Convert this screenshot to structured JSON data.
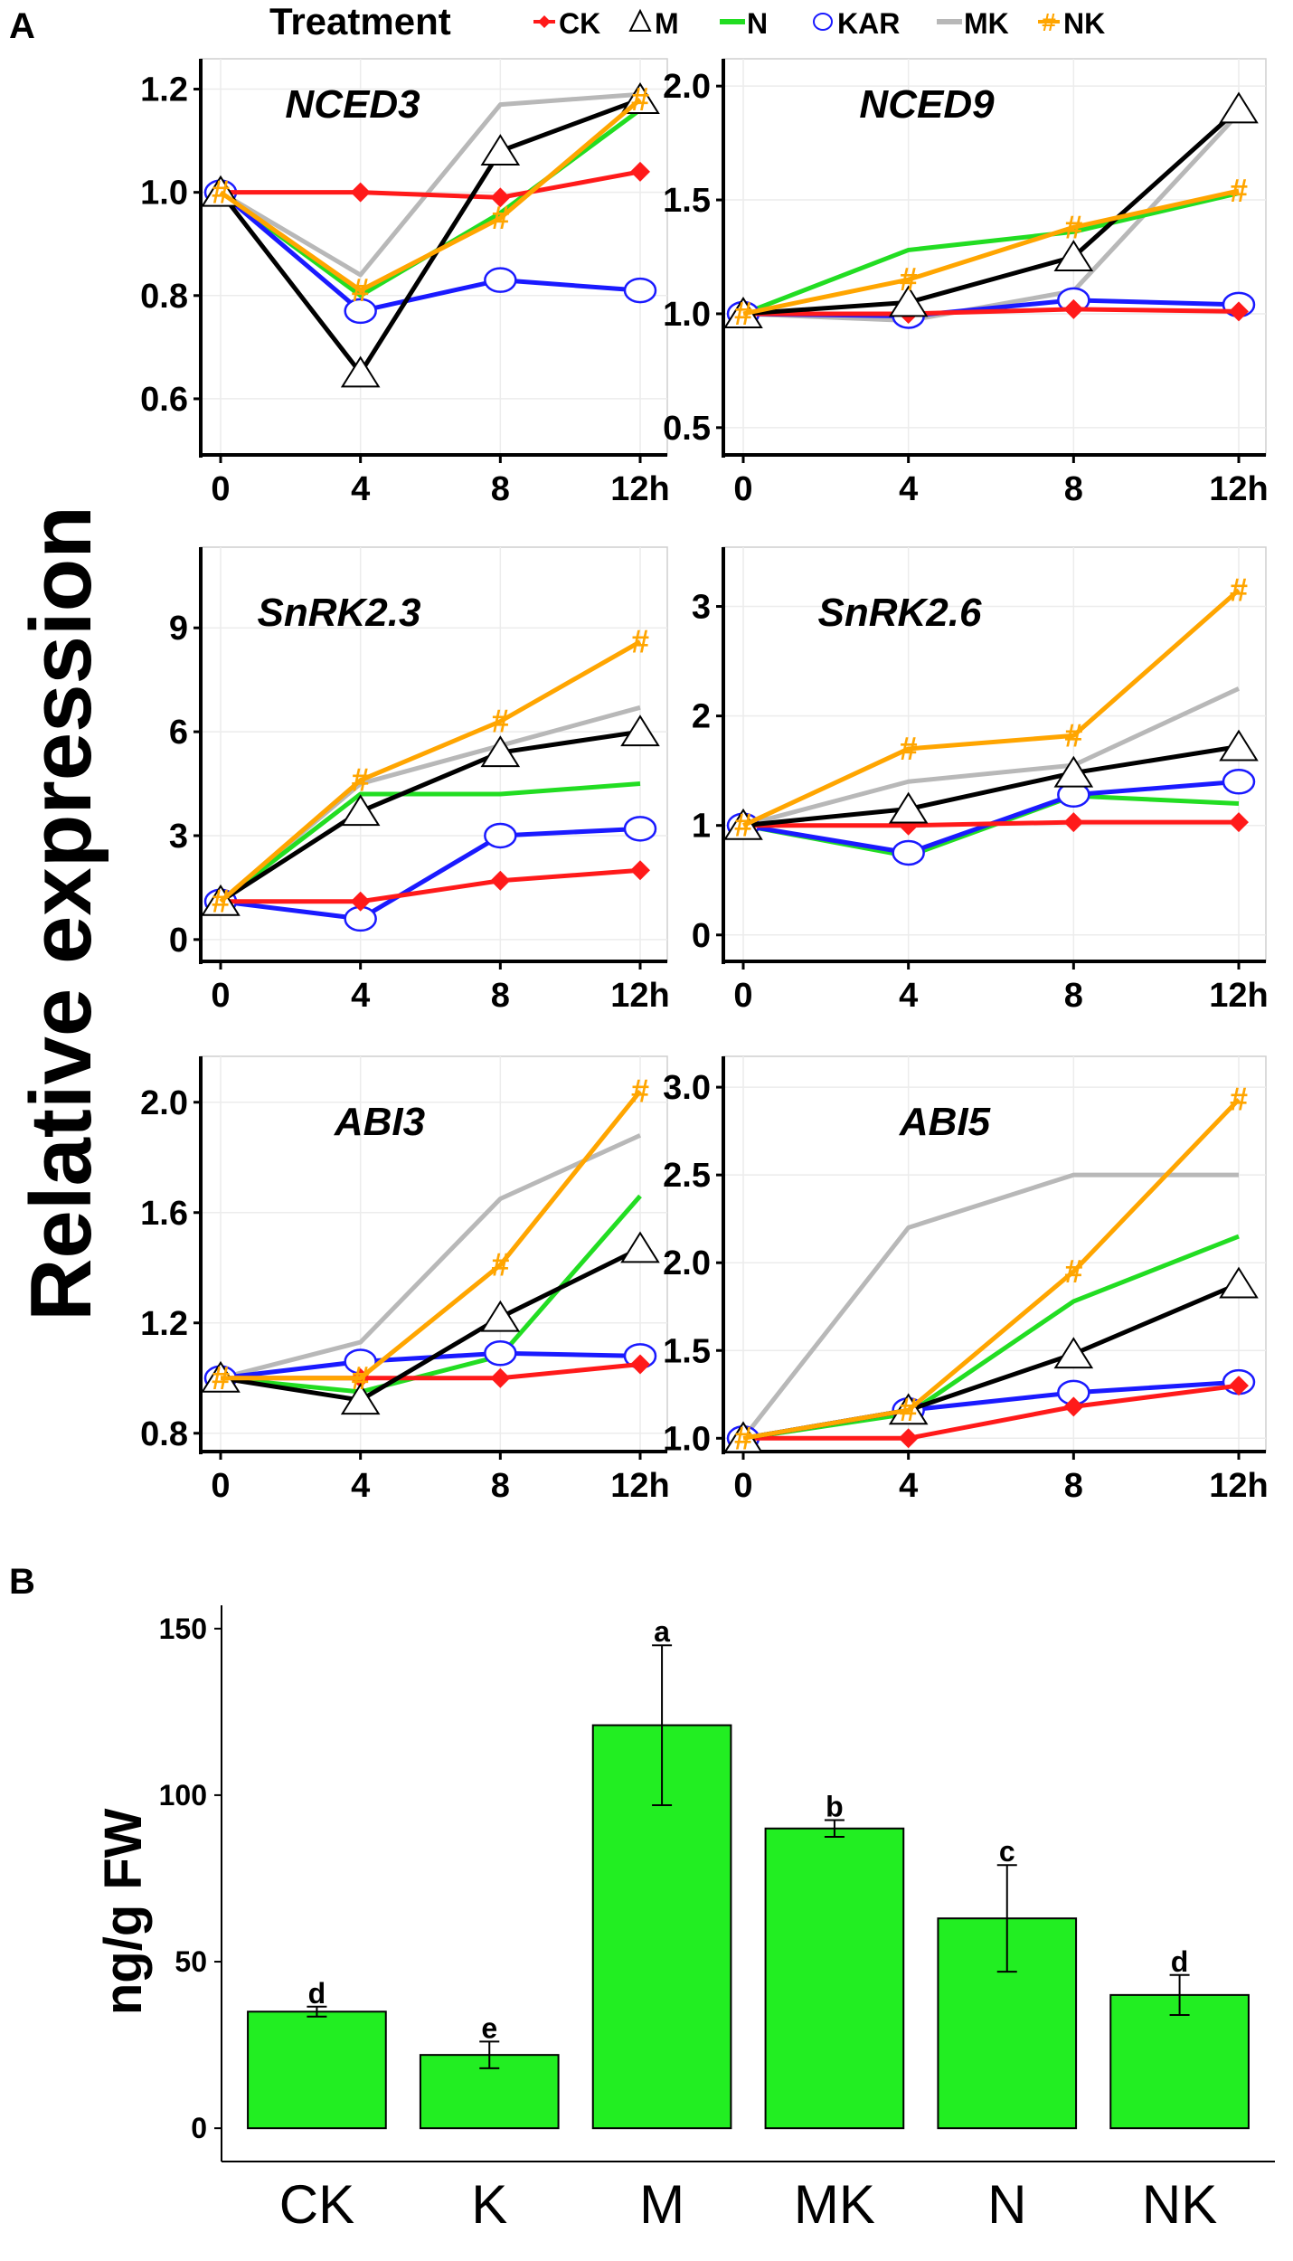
{
  "panel_labels": {
    "a": "A",
    "b": "B"
  },
  "legend": {
    "title": "Treatment",
    "items": [
      {
        "key": "CK",
        "label": "CK",
        "color": "#ff1a1a",
        "marker": "diamond"
      },
      {
        "key": "M",
        "label": "M",
        "color": "#000000",
        "marker": "triangle"
      },
      {
        "key": "N",
        "label": "N",
        "color": "#22dd22",
        "marker": "none"
      },
      {
        "key": "KAR",
        "label": "KAR",
        "color": "#1a1aff",
        "marker": "circle"
      },
      {
        "key": "MK",
        "label": "MK",
        "color": "#b8b8b8",
        "marker": "none"
      },
      {
        "key": "NK",
        "label": "NK",
        "color": "#ffa500",
        "marker": "hash"
      }
    ]
  },
  "shared_ylabel": "Relative expression",
  "chart_data": [
    {
      "type": "line",
      "title": "NCED3",
      "x": [
        0,
        4,
        8,
        12
      ],
      "x_tick_labels": [
        "0",
        "4",
        "8",
        "12h"
      ],
      "y_ticks": [
        "0.6",
        "0.8",
        "1.0",
        "1.2"
      ],
      "ylim": [
        0.5,
        1.25
      ],
      "series": [
        {
          "name": "CK",
          "values": [
            1.0,
            1.0,
            0.99,
            1.04
          ]
        },
        {
          "name": "M",
          "values": [
            1.0,
            0.65,
            1.08,
            1.18
          ]
        },
        {
          "name": "N",
          "values": [
            1.0,
            0.8,
            0.96,
            1.16
          ]
        },
        {
          "name": "KAR",
          "values": [
            1.0,
            0.77,
            0.83,
            0.81
          ]
        },
        {
          "name": "MK",
          "values": [
            1.0,
            0.84,
            1.17,
            1.19
          ]
        },
        {
          "name": "NK",
          "values": [
            1.0,
            0.81,
            0.95,
            1.18
          ]
        }
      ]
    },
    {
      "type": "line",
      "title": "NCED9",
      "x": [
        0,
        4,
        8,
        12
      ],
      "x_tick_labels": [
        "0",
        "4",
        "8",
        "12h"
      ],
      "y_ticks": [
        "0.5",
        "1.0",
        "1.5",
        "2.0"
      ],
      "ylim": [
        0.4,
        2.1
      ],
      "series": [
        {
          "name": "CK",
          "values": [
            1.0,
            1.0,
            1.02,
            1.01
          ]
        },
        {
          "name": "M",
          "values": [
            1.0,
            1.05,
            1.25,
            1.9
          ]
        },
        {
          "name": "N",
          "values": [
            1.0,
            1.28,
            1.36,
            1.53
          ]
        },
        {
          "name": "KAR",
          "values": [
            1.0,
            0.99,
            1.06,
            1.04
          ]
        },
        {
          "name": "MK",
          "values": [
            1.0,
            0.97,
            1.1,
            1.88
          ]
        },
        {
          "name": "NK",
          "values": [
            1.0,
            1.15,
            1.38,
            1.54
          ]
        }
      ]
    },
    {
      "type": "line",
      "title": "SnRK2.3",
      "x": [
        0,
        4,
        8,
        12
      ],
      "x_tick_labels": [
        "0",
        "4",
        "8",
        "12h"
      ],
      "y_ticks": [
        "0",
        "3",
        "6",
        "9"
      ],
      "ylim": [
        -0.5,
        11.2
      ],
      "series": [
        {
          "name": "CK",
          "values": [
            1.1,
            1.1,
            1.7,
            2.0
          ]
        },
        {
          "name": "M",
          "values": [
            1.1,
            3.7,
            5.4,
            6.0
          ]
        },
        {
          "name": "N",
          "values": [
            1.1,
            4.2,
            4.2,
            4.5
          ]
        },
        {
          "name": "KAR",
          "values": [
            1.1,
            0.6,
            3.0,
            3.2
          ]
        },
        {
          "name": "MK",
          "values": [
            1.1,
            4.5,
            5.6,
            6.7
          ]
        },
        {
          "name": "NK",
          "values": [
            1.1,
            4.6,
            6.3,
            8.6
          ]
        }
      ]
    },
    {
      "type": "line",
      "title": "SnRK2.6",
      "x": [
        0,
        4,
        8,
        12
      ],
      "x_tick_labels": [
        "0",
        "4",
        "8",
        "12h"
      ],
      "y_ticks": [
        "0",
        "1",
        "2",
        "3"
      ],
      "ylim": [
        -0.2,
        3.5
      ],
      "series": [
        {
          "name": "CK",
          "values": [
            1.0,
            1.0,
            1.03,
            1.03
          ]
        },
        {
          "name": "M",
          "values": [
            1.0,
            1.15,
            1.48,
            1.72
          ]
        },
        {
          "name": "N",
          "values": [
            1.0,
            0.72,
            1.27,
            1.2
          ]
        },
        {
          "name": "KAR",
          "values": [
            1.0,
            0.75,
            1.28,
            1.4
          ]
        },
        {
          "name": "MK",
          "values": [
            1.0,
            1.4,
            1.55,
            2.25
          ]
        },
        {
          "name": "NK",
          "values": [
            1.0,
            1.7,
            1.82,
            3.15
          ]
        }
      ]
    },
    {
      "type": "line",
      "title": "ABI3",
      "x": [
        0,
        4,
        8,
        12
      ],
      "x_tick_labels": [
        "0",
        "4",
        "8",
        "12h"
      ],
      "y_ticks": [
        "0.8",
        "1.2",
        "1.6",
        "2.0"
      ],
      "ylim": [
        0.75,
        2.15
      ],
      "series": [
        {
          "name": "CK",
          "values": [
            1.0,
            1.0,
            1.0,
            1.05
          ]
        },
        {
          "name": "M",
          "values": [
            1.0,
            0.92,
            1.22,
            1.47
          ]
        },
        {
          "name": "N",
          "values": [
            1.0,
            0.95,
            1.08,
            1.66
          ]
        },
        {
          "name": "KAR",
          "values": [
            1.0,
            1.06,
            1.09,
            1.08
          ]
        },
        {
          "name": "MK",
          "values": [
            1.0,
            1.13,
            1.65,
            1.88
          ]
        },
        {
          "name": "NK",
          "values": [
            1.0,
            1.0,
            1.41,
            2.04
          ]
        }
      ]
    },
    {
      "type": "line",
      "title": "ABI5",
      "x": [
        0,
        4,
        8,
        12
      ],
      "x_tick_labels": [
        "0",
        "4",
        "8",
        "12h"
      ],
      "y_ticks": [
        "1.0",
        "1.5",
        "2.0",
        "2.5",
        "3.0"
      ],
      "ylim": [
        0.95,
        3.15
      ],
      "series": [
        {
          "name": "CK",
          "values": [
            1.0,
            1.0,
            1.18,
            1.3
          ]
        },
        {
          "name": "M",
          "values": [
            1.0,
            1.16,
            1.48,
            1.88
          ]
        },
        {
          "name": "N",
          "values": [
            1.0,
            1.14,
            1.78,
            2.15
          ]
        },
        {
          "name": "KAR",
          "values": [
            1.0,
            1.16,
            1.26,
            1.32
          ]
        },
        {
          "name": "MK",
          "values": [
            1.0,
            2.2,
            2.5,
            2.5
          ]
        },
        {
          "name": "NK",
          "values": [
            1.0,
            1.16,
            1.95,
            2.93
          ]
        }
      ]
    },
    {
      "type": "bar",
      "ylabel": "ng/g FW",
      "categories": [
        "CK",
        "K",
        "M",
        "MK",
        "N",
        "NK"
      ],
      "values": [
        35,
        22,
        121,
        90,
        63,
        40
      ],
      "errors": [
        1.5,
        4,
        24,
        2.5,
        16,
        6
      ],
      "letters": [
        "d",
        "e",
        "a",
        "b",
        "c",
        "d"
      ],
      "y_ticks": [
        "0",
        "50",
        "100",
        "150"
      ],
      "ylim": [
        -10,
        157
      ],
      "bar_color": "#22ee22"
    }
  ]
}
